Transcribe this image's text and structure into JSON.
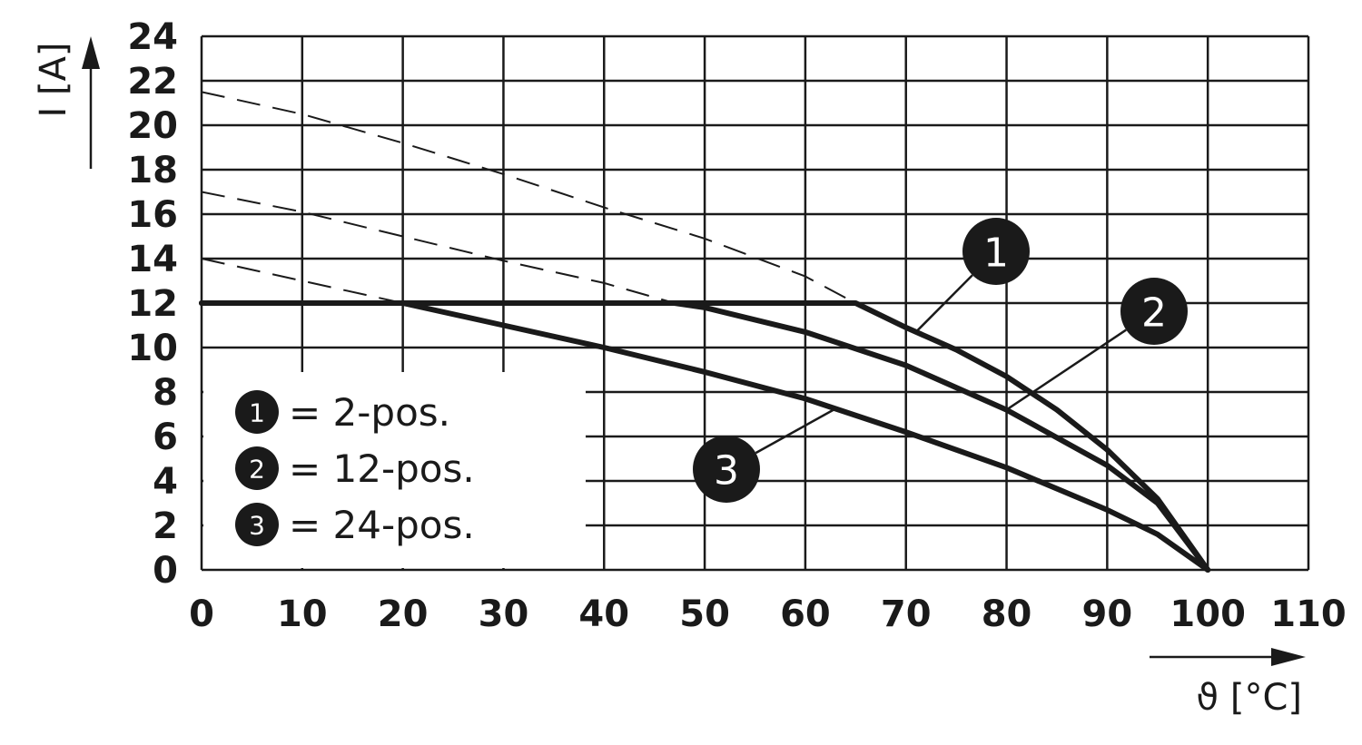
{
  "chart_data": {
    "type": "line",
    "xlabel": "ϑ [°C]",
    "ylabel": "I [A]",
    "xlim": [
      0,
      110
    ],
    "ylim": [
      0,
      24
    ],
    "x_ticks": [
      "0",
      "10",
      "20",
      "30",
      "40",
      "50",
      "60",
      "70",
      "80",
      "90",
      "100",
      "110"
    ],
    "y_ticks": [
      "0",
      "2",
      "4",
      "6",
      "8",
      "10",
      "12",
      "14",
      "16",
      "18",
      "20",
      "22",
      "24"
    ],
    "grid": true,
    "legend_position": "bottom-left",
    "colors": {
      "line": "#1a1a1a",
      "background": "#ffffff"
    },
    "series": [
      {
        "name": "2-pos.",
        "marker": "1",
        "x": [
          0,
          65,
          70,
          75,
          80,
          85,
          90,
          95,
          100
        ],
        "y": [
          12,
          12,
          10.9,
          9.9,
          8.7,
          7.2,
          5.4,
          3.2,
          0
        ],
        "extrapolated": {
          "x": [
            0,
            10,
            20,
            30,
            40,
            50,
            60,
            65
          ],
          "y": [
            21.5,
            20.5,
            19.2,
            17.8,
            16.3,
            14.9,
            13.2,
            12
          ]
        }
      },
      {
        "name": "12-pos.",
        "marker": "2",
        "x": [
          0,
          47,
          50,
          60,
          70,
          80,
          90,
          95,
          100
        ],
        "y": [
          12,
          12,
          11.8,
          10.7,
          9.2,
          7.2,
          4.7,
          3.0,
          0
        ],
        "extrapolated": {
          "x": [
            0,
            10,
            20,
            30,
            40,
            47
          ],
          "y": [
            17,
            16.1,
            15.0,
            13.9,
            12.9,
            12
          ]
        }
      },
      {
        "name": "24-pos.",
        "marker": "3",
        "x": [
          0,
          20,
          30,
          40,
          50,
          60,
          70,
          80,
          90,
          95,
          100
        ],
        "y": [
          12,
          12,
          11.0,
          10.0,
          8.9,
          7.7,
          6.2,
          4.6,
          2.7,
          1.6,
          0
        ],
        "extrapolated": {
          "x": [
            0,
            10,
            20
          ],
          "y": [
            14,
            13.0,
            12
          ]
        }
      }
    ],
    "legend": [
      {
        "marker": "1",
        "text": "= 2-pos."
      },
      {
        "marker": "2",
        "text": "= 12-pos."
      },
      {
        "marker": "3",
        "text": "= 24-pos."
      }
    ],
    "callouts": [
      {
        "marker": "1",
        "series": 0,
        "at_x": 71
      },
      {
        "marker": "2",
        "series": 1,
        "at_x": 80
      },
      {
        "marker": "3",
        "series": 2,
        "at_x": 63
      }
    ]
  }
}
